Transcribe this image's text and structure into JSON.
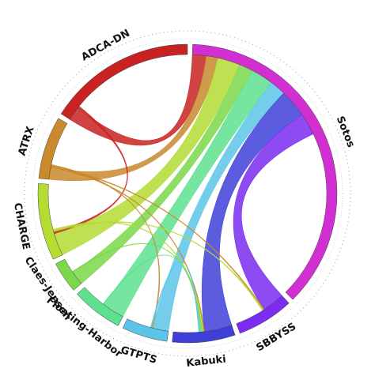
{
  "chart_data": {
    "type": "chord",
    "segments": [
      {
        "name": "Sotos",
        "color": "#d22fd2",
        "value": 6000
      },
      {
        "name": "SBBYSS",
        "color": "#7b2cf0",
        "value": 1000
      },
      {
        "name": "Kabuki",
        "color": "#3f3fd8",
        "value": 1100
      },
      {
        "name": "GTPTS",
        "color": "#5cc4e8",
        "value": 800
      },
      {
        "name": "Floating-Harbor",
        "color": "#5ee08f",
        "value": 900
      },
      {
        "name": "Claes-Jensen",
        "color": "#7ad84a",
        "value": 550
      },
      {
        "name": "CHARGE",
        "color": "#b4dc32",
        "value": 1350
      },
      {
        "name": "ATRX",
        "color": "#c98a2e",
        "value": 1100
      },
      {
        "name": "ADCA-DN",
        "color": "#c82222",
        "value": 2600
      }
    ],
    "chords": [
      {
        "source": "Sotos",
        "target": "ADCA-DN",
        "value": 260
      },
      {
        "source": "Sotos",
        "target": "ATRX",
        "value": 220
      },
      {
        "source": "Sotos",
        "target": "CHARGE",
        "value": 420
      },
      {
        "source": "Sotos",
        "target": "Claes-Jensen",
        "value": 260
      },
      {
        "source": "Sotos",
        "target": "Floating-Harbor",
        "value": 420
      },
      {
        "source": "Sotos",
        "target": "GTPTS",
        "value": 300
      },
      {
        "source": "Sotos",
        "target": "Kabuki",
        "value": 520
      },
      {
        "source": "Sotos",
        "target": "SBBYSS",
        "value": 420
      },
      {
        "source": "ADCA-DN",
        "target": "CHARGE",
        "value": 40
      },
      {
        "source": "ATRX",
        "target": "Kabuki",
        "value": 20
      },
      {
        "source": "ATRX",
        "target": "SBBYSS",
        "value": 20
      },
      {
        "source": "ATRX",
        "target": "GTPTS",
        "value": 20
      },
      {
        "source": "CHARGE",
        "target": "SBBYSS",
        "value": 20
      },
      {
        "source": "CHARGE",
        "target": "Kabuki",
        "value": 25
      },
      {
        "source": "Claes-Jensen",
        "target": "Kabuki",
        "value": 20
      },
      {
        "source": "Floating-Harbor",
        "target": "Kabuki",
        "value": 20
      },
      {
        "source": "GTPTS",
        "target": "Kabuki",
        "value": 20
      }
    ]
  }
}
